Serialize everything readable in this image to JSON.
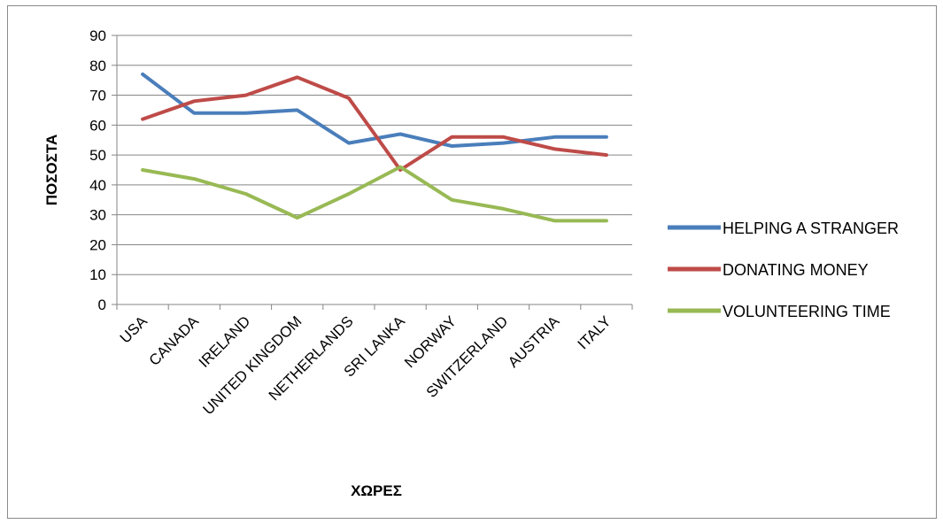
{
  "chart_data": {
    "type": "line",
    "categories": [
      "USA",
      "CANADA",
      "IRELAND",
      "UNITED KINGDOM",
      "NETHERLANDS",
      "SRI LANKA",
      "NORWAY",
      "SWITZERLAND",
      "AUSTRIA",
      "ITALY"
    ],
    "series": [
      {
        "name": "HELPING A STRANGER",
        "color": "#4a7ebb",
        "values": [
          77,
          64,
          64,
          65,
          54,
          57,
          53,
          54,
          56,
          56
        ]
      },
      {
        "name": "DONATING MONEY",
        "color": "#be4b48",
        "values": [
          62,
          68,
          70,
          76,
          69,
          45,
          56,
          56,
          52,
          50
        ]
      },
      {
        "name": "VOLUNTEERING TIME",
        "color": "#98b954",
        "values": [
          45,
          42,
          37,
          29,
          37,
          46,
          35,
          32,
          28,
          28
        ]
      }
    ],
    "xlabel": "ΧΩΡΕΣ",
    "ylabel": "ΠΟΣΟΣΤΑ",
    "ylim": [
      0,
      90
    ],
    "yticks": [
      "0",
      "10",
      "20",
      "30",
      "40",
      "50",
      "60",
      "70",
      "80",
      "90"
    ],
    "grid": true,
    "legend_position": "right"
  }
}
